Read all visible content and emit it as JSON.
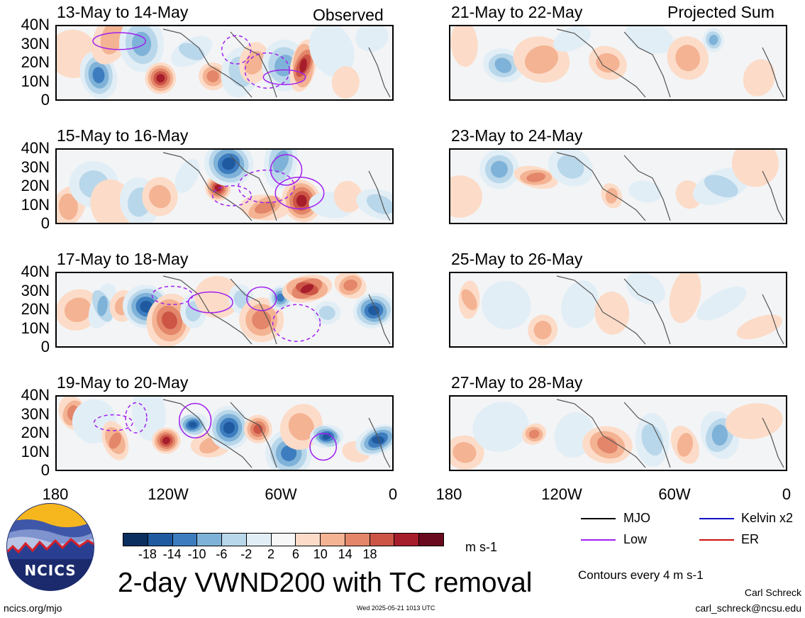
{
  "panels": [
    {
      "title": "13-May to 14-May",
      "tag": "Observed"
    },
    {
      "title": "21-May to 22-May",
      "tag": "Projected Sum"
    },
    {
      "title": "15-May to 16-May",
      "tag": ""
    },
    {
      "title": "23-May to 24-May",
      "tag": ""
    },
    {
      "title": "17-May to 18-May",
      "tag": ""
    },
    {
      "title": "25-May to 26-May",
      "tag": ""
    },
    {
      "title": "19-May to 20-May",
      "tag": ""
    },
    {
      "title": "27-May to 28-May",
      "tag": ""
    }
  ],
  "lat_labels": [
    "40N",
    "30N",
    "20N",
    "10N",
    "0"
  ],
  "lon_labels": [
    "180",
    "120W",
    "60W",
    "0"
  ],
  "colorbar": {
    "ticks": [
      "-18",
      "-14",
      "-10",
      "-6",
      "-2",
      "2",
      "6",
      "10",
      "14",
      "18"
    ],
    "colors": [
      "#0b2f5e",
      "#1f5aa0",
      "#3d7dbf",
      "#7fb2d8",
      "#b9d7ea",
      "#e2eef6",
      "#f7f7f7",
      "#fcdcc8",
      "#f4b393",
      "#e3866a",
      "#cc5546",
      "#a61d2c",
      "#6a0a1e"
    ],
    "units": "m s-1"
  },
  "legend": [
    {
      "label": "MJO",
      "color": "#000000"
    },
    {
      "label": "Kelvin x2",
      "color": "#1010c8"
    },
    {
      "label": "Low",
      "color": "#a020f0"
    },
    {
      "label": "ER",
      "color": "#cc1010"
    }
  ],
  "main_title": "2-day VWND200 with TC removal",
  "contour_note": "Contours every 4 m s-1",
  "logo_text": "NCICS",
  "site": "ncics.org/mjo",
  "timestamp": "Wed 2025-05-21 1013 UTC",
  "author": "Carl Schreck",
  "email": "carl_schreck@ncsu.edu"
}
